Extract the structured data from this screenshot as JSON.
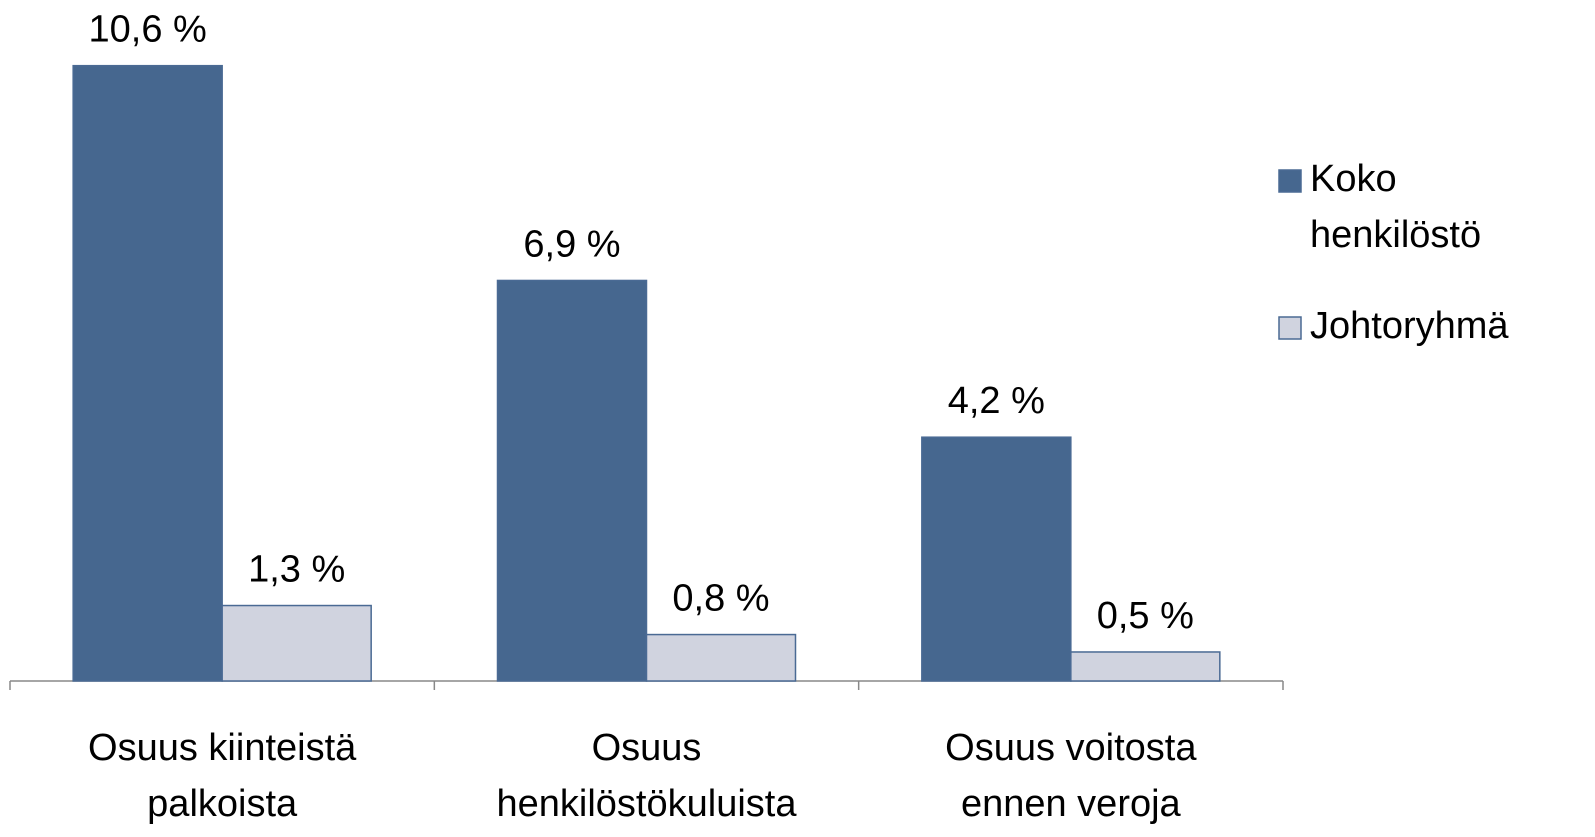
{
  "chart_data": {
    "type": "bar",
    "categories": [
      "Osuus kiinteistä palkoista",
      "Osuus henkilöstökuluista",
      "Osuus voitosta ennen veroja"
    ],
    "series": [
      {
        "name": "Koko henkilöstö",
        "color": "#46678f",
        "values": [
          10.6,
          6.9,
          4.2
        ],
        "value_labels": [
          "10,6 %",
          "6,9 %",
          "4,2 %"
        ]
      },
      {
        "name": "Johtoryhmä",
        "color": "#d0d3df",
        "values": [
          1.3,
          0.8,
          0.5
        ],
        "value_labels": [
          "1,3 %",
          "0,8 %",
          "0,5 %"
        ]
      }
    ],
    "legend": "right"
  }
}
